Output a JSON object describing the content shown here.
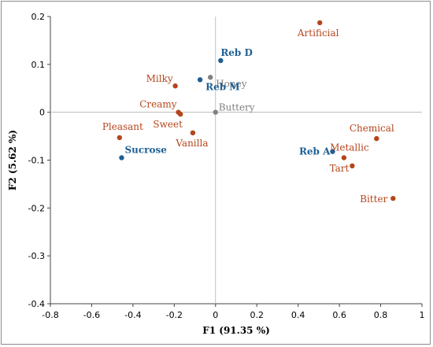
{
  "chart_data": {
    "type": "scatter",
    "xlabel": "F1 (91.35 %)",
    "ylabel": "F2 (5.62 %)",
    "xlim": [
      -0.8,
      1.0
    ],
    "ylim": [
      -0.4,
      0.2
    ],
    "xticks": [
      "-0.8",
      "-0.6",
      "-0.4",
      "-0.2",
      "0",
      "0.2",
      "0.4",
      "0.6",
      "0.8",
      "1"
    ],
    "yticks": [
      "0.2",
      "0.1",
      "0",
      "-0.1",
      "-0.2",
      "-0.3",
      "-0.4"
    ],
    "grid": false,
    "colors": {
      "attribute": "#b5451b",
      "sweetener": "#1f5f93",
      "supplementary": "#808080"
    },
    "points": [
      {
        "label": "Artificial",
        "x": 0.505,
        "y": 0.187,
        "group": "attribute",
        "anchor": "middle",
        "dx": -2,
        "dy": 17
      },
      {
        "label": "Reb D",
        "x": 0.025,
        "y": 0.108,
        "group": "sweetener",
        "anchor": "start",
        "dx": 0,
        "dy": -6
      },
      {
        "label": "Honey",
        "x": -0.025,
        "y": 0.073,
        "group": "supplementary",
        "anchor": "start",
        "dx": 7,
        "dy": 12
      },
      {
        "label": "Reb M",
        "x": -0.075,
        "y": 0.068,
        "group": "sweetener",
        "anchor": "start",
        "dx": 7,
        "dy": 13
      },
      {
        "label": "Milky",
        "x": -0.195,
        "y": 0.055,
        "group": "attribute",
        "anchor": "end",
        "dx": -3,
        "dy": -5
      },
      {
        "label": "Creamy",
        "x": -0.18,
        "y": 0.0,
        "group": "attribute",
        "anchor": "end",
        "dx": -2,
        "dy": -6
      },
      {
        "label": "Sweet",
        "x": -0.17,
        "y": -0.004,
        "group": "attribute",
        "anchor": "middle",
        "dx": -16,
        "dy": 17
      },
      {
        "label": "Buttery",
        "x": 0.0,
        "y": 0.0,
        "group": "supplementary",
        "anchor": "start",
        "dx": 4,
        "dy": -2
      },
      {
        "label": "Vanilla",
        "x": -0.11,
        "y": -0.043,
        "group": "attribute",
        "anchor": "middle",
        "dx": -1,
        "dy": 17
      },
      {
        "label": "Pleasant",
        "x": -0.465,
        "y": -0.053,
        "group": "attribute",
        "anchor": "middle",
        "dx": 4,
        "dy": -10
      },
      {
        "label": "Sucrose",
        "x": -0.455,
        "y": -0.095,
        "group": "sweetener",
        "anchor": "start",
        "dx": 4,
        "dy": -6
      },
      {
        "label": "Chemical",
        "x": 0.78,
        "y": -0.055,
        "group": "attribute",
        "anchor": "middle",
        "dx": -6,
        "dy": -9
      },
      {
        "label": "Reb A",
        "x": 0.567,
        "y": -0.082,
        "group": "sweetener",
        "anchor": "end",
        "dx": -3,
        "dy": 4
      },
      {
        "label": "Metallic",
        "x": 0.622,
        "y": -0.095,
        "group": "attribute",
        "anchor": "middle",
        "dx": 7,
        "dy": -9
      },
      {
        "label": "Tart",
        "x": 0.662,
        "y": -0.112,
        "group": "attribute",
        "anchor": "end",
        "dx": -4,
        "dy": 7
      },
      {
        "label": "Bitter",
        "x": 0.86,
        "y": -0.18,
        "group": "attribute",
        "anchor": "end",
        "dx": -7,
        "dy": 5
      }
    ]
  }
}
